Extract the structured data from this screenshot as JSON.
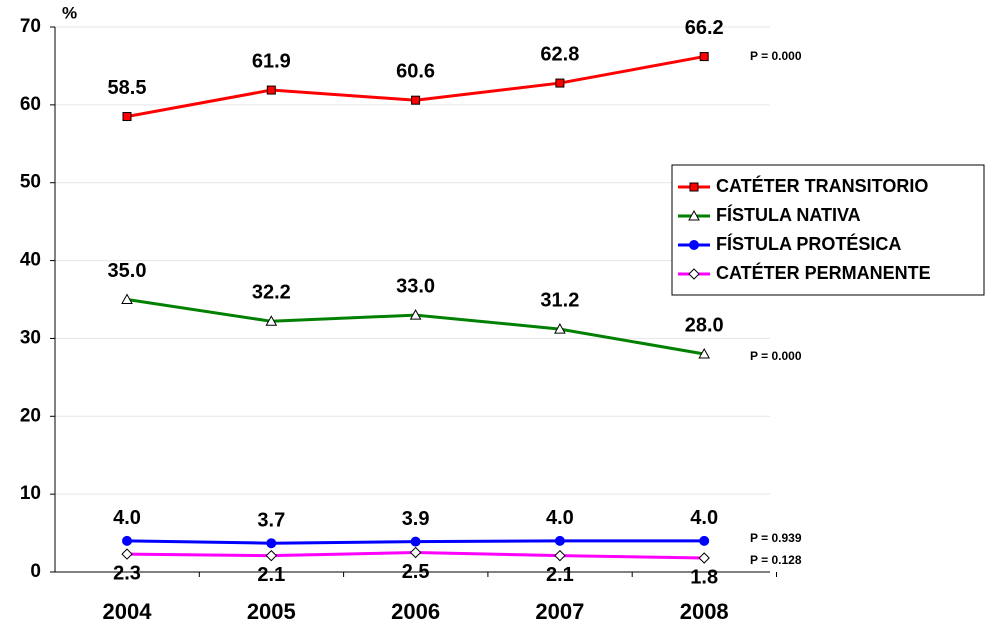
{
  "chart_data": {
    "type": "line",
    "y_label": "%",
    "categories": [
      "2004",
      "2005",
      "2006",
      "2007",
      "2008"
    ],
    "ylim": [
      0,
      70
    ],
    "yticks": [
      0,
      10,
      20,
      30,
      40,
      50,
      60,
      70
    ],
    "grid": true,
    "legend": "right",
    "series": [
      {
        "name": "CATÉTER TRANSITORIO",
        "color": "#ff0000",
        "marker": "square",
        "values": [
          58.5,
          61.9,
          60.6,
          62.8,
          66.2
        ],
        "value_labels": [
          "58.5",
          "61.9",
          "60.6",
          "62.8",
          "66.2"
        ],
        "annotation": "P = 0.000"
      },
      {
        "name": "FÍSTULA NATIVA",
        "color": "#008000",
        "marker": "triangle",
        "values": [
          35.0,
          32.2,
          33.0,
          31.2,
          28.0
        ],
        "value_labels": [
          "35.0",
          "32.2",
          "33.0",
          "31.2",
          "28.0"
        ],
        "annotation": "P = 0.000"
      },
      {
        "name": "FÍSTULA PROTÉSICA",
        "color": "#0000ff",
        "marker": "circle",
        "values": [
          4.0,
          3.7,
          3.9,
          4.0,
          4.0
        ],
        "value_labels": [
          "4.0",
          "3.7",
          "3.9",
          "4.0",
          "4.0"
        ],
        "annotation": "P = 0.939"
      },
      {
        "name": "CATÉTER PERMANENTE",
        "color": "#ff00ff",
        "marker": "diamond",
        "values": [
          2.3,
          2.1,
          2.5,
          2.1,
          1.8
        ],
        "value_labels": [
          "2.3",
          "2.1",
          "2.5",
          "2.1",
          "1.8"
        ],
        "annotation": "P = 0.128"
      }
    ]
  }
}
